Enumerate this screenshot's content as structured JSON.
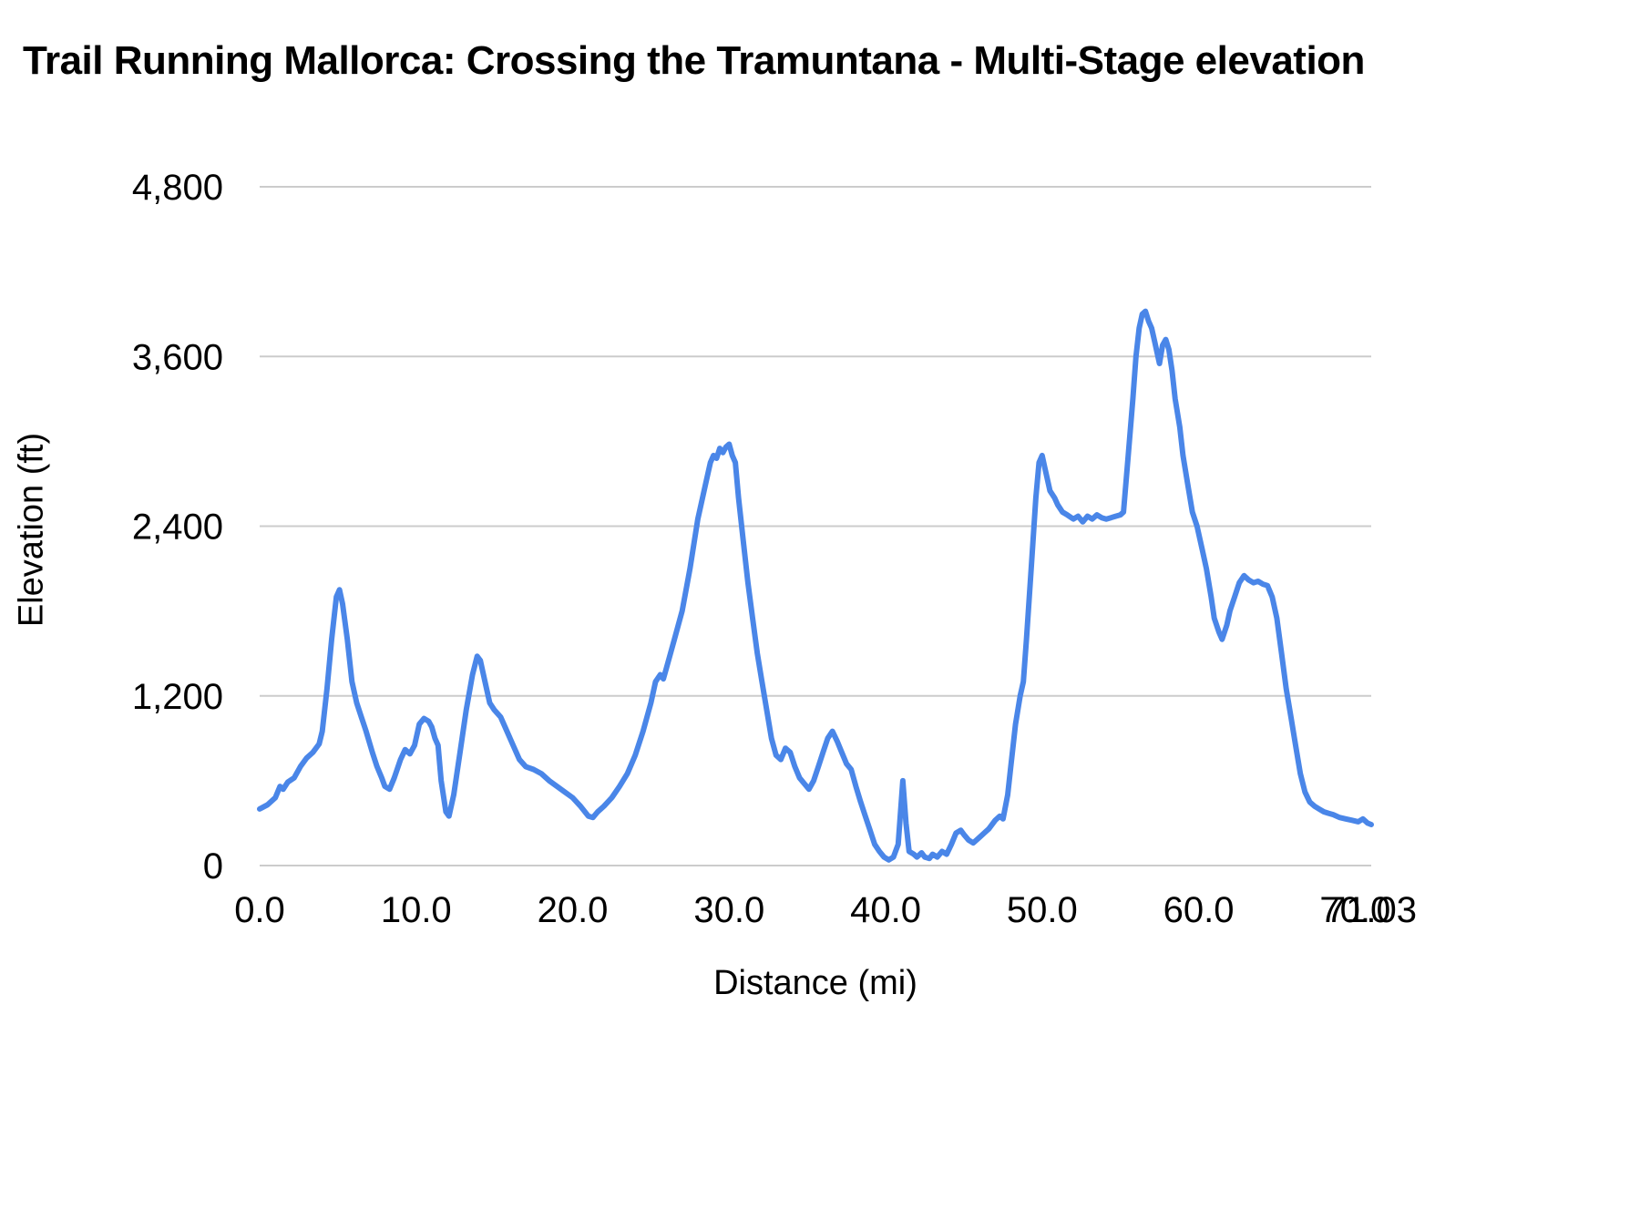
{
  "chart_data": {
    "type": "line",
    "title": "Trail Running Mallorca: Crossing the Tramuntana - Multi-Stage elevation",
    "xlabel": "Distance (mi)",
    "ylabel": "Elevation (ft)",
    "xlim": [
      0,
      71.03
    ],
    "ylim": [
      0,
      4800
    ],
    "x_tick_values": [
      0,
      10,
      20,
      30,
      40,
      50,
      60,
      70,
      71.03
    ],
    "x_tick_labels": [
      "0.0",
      "10.0",
      "20.0",
      "30.0",
      "40.0",
      "50.0",
      "60.0",
      "70.0",
      "71.03"
    ],
    "y_tick_values": [
      0,
      1200,
      2400,
      3600,
      4800
    ],
    "y_tick_labels": [
      "0",
      "1,200",
      "2,400",
      "3,600",
      "4,800"
    ],
    "grid": "horizontal",
    "legend": "none",
    "line_color": "#4a86e8",
    "gridline_color": "#cccccc",
    "series": [
      {
        "name": "Elevation",
        "points": [
          [
            0.0,
            400
          ],
          [
            0.5,
            430
          ],
          [
            1.0,
            480
          ],
          [
            1.3,
            560
          ],
          [
            1.5,
            540
          ],
          [
            1.8,
            590
          ],
          [
            2.2,
            620
          ],
          [
            2.6,
            700
          ],
          [
            3.0,
            760
          ],
          [
            3.4,
            800
          ],
          [
            3.8,
            860
          ],
          [
            4.0,
            950
          ],
          [
            4.3,
            1250
          ],
          [
            4.6,
            1600
          ],
          [
            4.9,
            1900
          ],
          [
            5.1,
            1950
          ],
          [
            5.3,
            1850
          ],
          [
            5.6,
            1600
          ],
          [
            5.9,
            1300
          ],
          [
            6.2,
            1150
          ],
          [
            6.5,
            1050
          ],
          [
            6.8,
            950
          ],
          [
            7.2,
            800
          ],
          [
            7.5,
            700
          ],
          [
            7.8,
            620
          ],
          [
            8.0,
            560
          ],
          [
            8.3,
            540
          ],
          [
            8.6,
            620
          ],
          [
            9.0,
            750
          ],
          [
            9.3,
            820
          ],
          [
            9.6,
            790
          ],
          [
            9.9,
            850
          ],
          [
            10.2,
            1000
          ],
          [
            10.5,
            1040
          ],
          [
            10.8,
            1020
          ],
          [
            11.0,
            980
          ],
          [
            11.2,
            900
          ],
          [
            11.4,
            850
          ],
          [
            11.6,
            600
          ],
          [
            11.9,
            380
          ],
          [
            12.1,
            350
          ],
          [
            12.4,
            500
          ],
          [
            12.8,
            800
          ],
          [
            13.2,
            1100
          ],
          [
            13.6,
            1350
          ],
          [
            13.9,
            1480
          ],
          [
            14.1,
            1450
          ],
          [
            14.4,
            1300
          ],
          [
            14.7,
            1150
          ],
          [
            15.0,
            1100
          ],
          [
            15.4,
            1050
          ],
          [
            15.8,
            950
          ],
          [
            16.2,
            850
          ],
          [
            16.6,
            750
          ],
          [
            17.0,
            700
          ],
          [
            17.5,
            680
          ],
          [
            18.0,
            650
          ],
          [
            18.5,
            600
          ],
          [
            19.0,
            560
          ],
          [
            19.5,
            520
          ],
          [
            20.0,
            480
          ],
          [
            20.5,
            420
          ],
          [
            21.0,
            350
          ],
          [
            21.3,
            340
          ],
          [
            21.6,
            380
          ],
          [
            22.0,
            420
          ],
          [
            22.5,
            480
          ],
          [
            23.0,
            560
          ],
          [
            23.5,
            650
          ],
          [
            24.0,
            780
          ],
          [
            24.5,
            950
          ],
          [
            25.0,
            1150
          ],
          [
            25.3,
            1300
          ],
          [
            25.6,
            1350
          ],
          [
            25.8,
            1320
          ],
          [
            26.0,
            1400
          ],
          [
            26.5,
            1600
          ],
          [
            27.0,
            1800
          ],
          [
            27.5,
            2100
          ],
          [
            28.0,
            2450
          ],
          [
            28.5,
            2700
          ],
          [
            28.8,
            2850
          ],
          [
            29.0,
            2900
          ],
          [
            29.2,
            2880
          ],
          [
            29.4,
            2950
          ],
          [
            29.6,
            2920
          ],
          [
            29.8,
            2960
          ],
          [
            30.0,
            2980
          ],
          [
            30.2,
            2900
          ],
          [
            30.4,
            2850
          ],
          [
            30.6,
            2600
          ],
          [
            30.9,
            2300
          ],
          [
            31.2,
            2000
          ],
          [
            31.5,
            1750
          ],
          [
            31.8,
            1500
          ],
          [
            32.1,
            1300
          ],
          [
            32.4,
            1100
          ],
          [
            32.7,
            900
          ],
          [
            33.0,
            780
          ],
          [
            33.3,
            750
          ],
          [
            33.6,
            830
          ],
          [
            33.9,
            800
          ],
          [
            34.2,
            700
          ],
          [
            34.5,
            620
          ],
          [
            34.8,
            580
          ],
          [
            35.1,
            540
          ],
          [
            35.4,
            600
          ],
          [
            35.7,
            700
          ],
          [
            36.0,
            800
          ],
          [
            36.3,
            900
          ],
          [
            36.6,
            950
          ],
          [
            36.9,
            880
          ],
          [
            37.2,
            800
          ],
          [
            37.5,
            720
          ],
          [
            37.8,
            680
          ],
          [
            38.1,
            560
          ],
          [
            38.4,
            450
          ],
          [
            38.7,
            350
          ],
          [
            39.0,
            250
          ],
          [
            39.3,
            150
          ],
          [
            39.6,
            100
          ],
          [
            39.9,
            60
          ],
          [
            40.2,
            40
          ],
          [
            40.5,
            60
          ],
          [
            40.8,
            150
          ],
          [
            41.0,
            450
          ],
          [
            41.1,
            600
          ],
          [
            41.3,
            300
          ],
          [
            41.5,
            100
          ],
          [
            41.8,
            80
          ],
          [
            42.0,
            60
          ],
          [
            42.3,
            90
          ],
          [
            42.5,
            60
          ],
          [
            42.8,
            50
          ],
          [
            43.0,
            80
          ],
          [
            43.3,
            60
          ],
          [
            43.6,
            100
          ],
          [
            43.9,
            80
          ],
          [
            44.2,
            150
          ],
          [
            44.5,
            230
          ],
          [
            44.8,
            250
          ],
          [
            45.0,
            220
          ],
          [
            45.3,
            180
          ],
          [
            45.6,
            160
          ],
          [
            46.0,
            200
          ],
          [
            46.3,
            230
          ],
          [
            46.6,
            260
          ],
          [
            47.0,
            320
          ],
          [
            47.3,
            350
          ],
          [
            47.5,
            330
          ],
          [
            47.8,
            500
          ],
          [
            48.0,
            700
          ],
          [
            48.3,
            1000
          ],
          [
            48.6,
            1200
          ],
          [
            48.8,
            1300
          ],
          [
            49.0,
            1600
          ],
          [
            49.3,
            2100
          ],
          [
            49.6,
            2600
          ],
          [
            49.8,
            2850
          ],
          [
            50.0,
            2900
          ],
          [
            50.2,
            2800
          ],
          [
            50.5,
            2650
          ],
          [
            50.8,
            2600
          ],
          [
            51.0,
            2550
          ],
          [
            51.3,
            2500
          ],
          [
            51.6,
            2480
          ],
          [
            52.0,
            2450
          ],
          [
            52.3,
            2470
          ],
          [
            52.6,
            2430
          ],
          [
            52.9,
            2470
          ],
          [
            53.2,
            2450
          ],
          [
            53.5,
            2480
          ],
          [
            53.8,
            2460
          ],
          [
            54.1,
            2450
          ],
          [
            54.4,
            2460
          ],
          [
            54.7,
            2470
          ],
          [
            55.0,
            2480
          ],
          [
            55.2,
            2500
          ],
          [
            55.5,
            2900
          ],
          [
            55.8,
            3300
          ],
          [
            56.0,
            3600
          ],
          [
            56.2,
            3800
          ],
          [
            56.4,
            3900
          ],
          [
            56.6,
            3920
          ],
          [
            56.8,
            3850
          ],
          [
            57.0,
            3800
          ],
          [
            57.2,
            3700
          ],
          [
            57.4,
            3600
          ],
          [
            57.5,
            3550
          ],
          [
            57.7,
            3680
          ],
          [
            57.9,
            3720
          ],
          [
            58.1,
            3650
          ],
          [
            58.3,
            3500
          ],
          [
            58.5,
            3300
          ],
          [
            58.8,
            3100
          ],
          [
            59.0,
            2900
          ],
          [
            59.3,
            2700
          ],
          [
            59.6,
            2500
          ],
          [
            59.9,
            2400
          ],
          [
            60.2,
            2250
          ],
          [
            60.5,
            2100
          ],
          [
            60.8,
            1900
          ],
          [
            61.0,
            1750
          ],
          [
            61.3,
            1650
          ],
          [
            61.5,
            1600
          ],
          [
            61.8,
            1700
          ],
          [
            62.0,
            1800
          ],
          [
            62.3,
            1900
          ],
          [
            62.6,
            2000
          ],
          [
            62.9,
            2050
          ],
          [
            63.2,
            2020
          ],
          [
            63.5,
            2000
          ],
          [
            63.8,
            2010
          ],
          [
            64.1,
            1990
          ],
          [
            64.4,
            1980
          ],
          [
            64.7,
            1900
          ],
          [
            65.0,
            1750
          ],
          [
            65.3,
            1500
          ],
          [
            65.6,
            1250
          ],
          [
            65.9,
            1050
          ],
          [
            66.2,
            850
          ],
          [
            66.5,
            650
          ],
          [
            66.8,
            520
          ],
          [
            67.1,
            450
          ],
          [
            67.4,
            420
          ],
          [
            67.7,
            400
          ],
          [
            68.0,
            380
          ],
          [
            68.3,
            370
          ],
          [
            68.6,
            360
          ],
          [
            69.0,
            340
          ],
          [
            69.4,
            330
          ],
          [
            69.8,
            320
          ],
          [
            70.2,
            310
          ],
          [
            70.5,
            330
          ],
          [
            70.8,
            300
          ],
          [
            71.03,
            290
          ]
        ]
      }
    ]
  }
}
